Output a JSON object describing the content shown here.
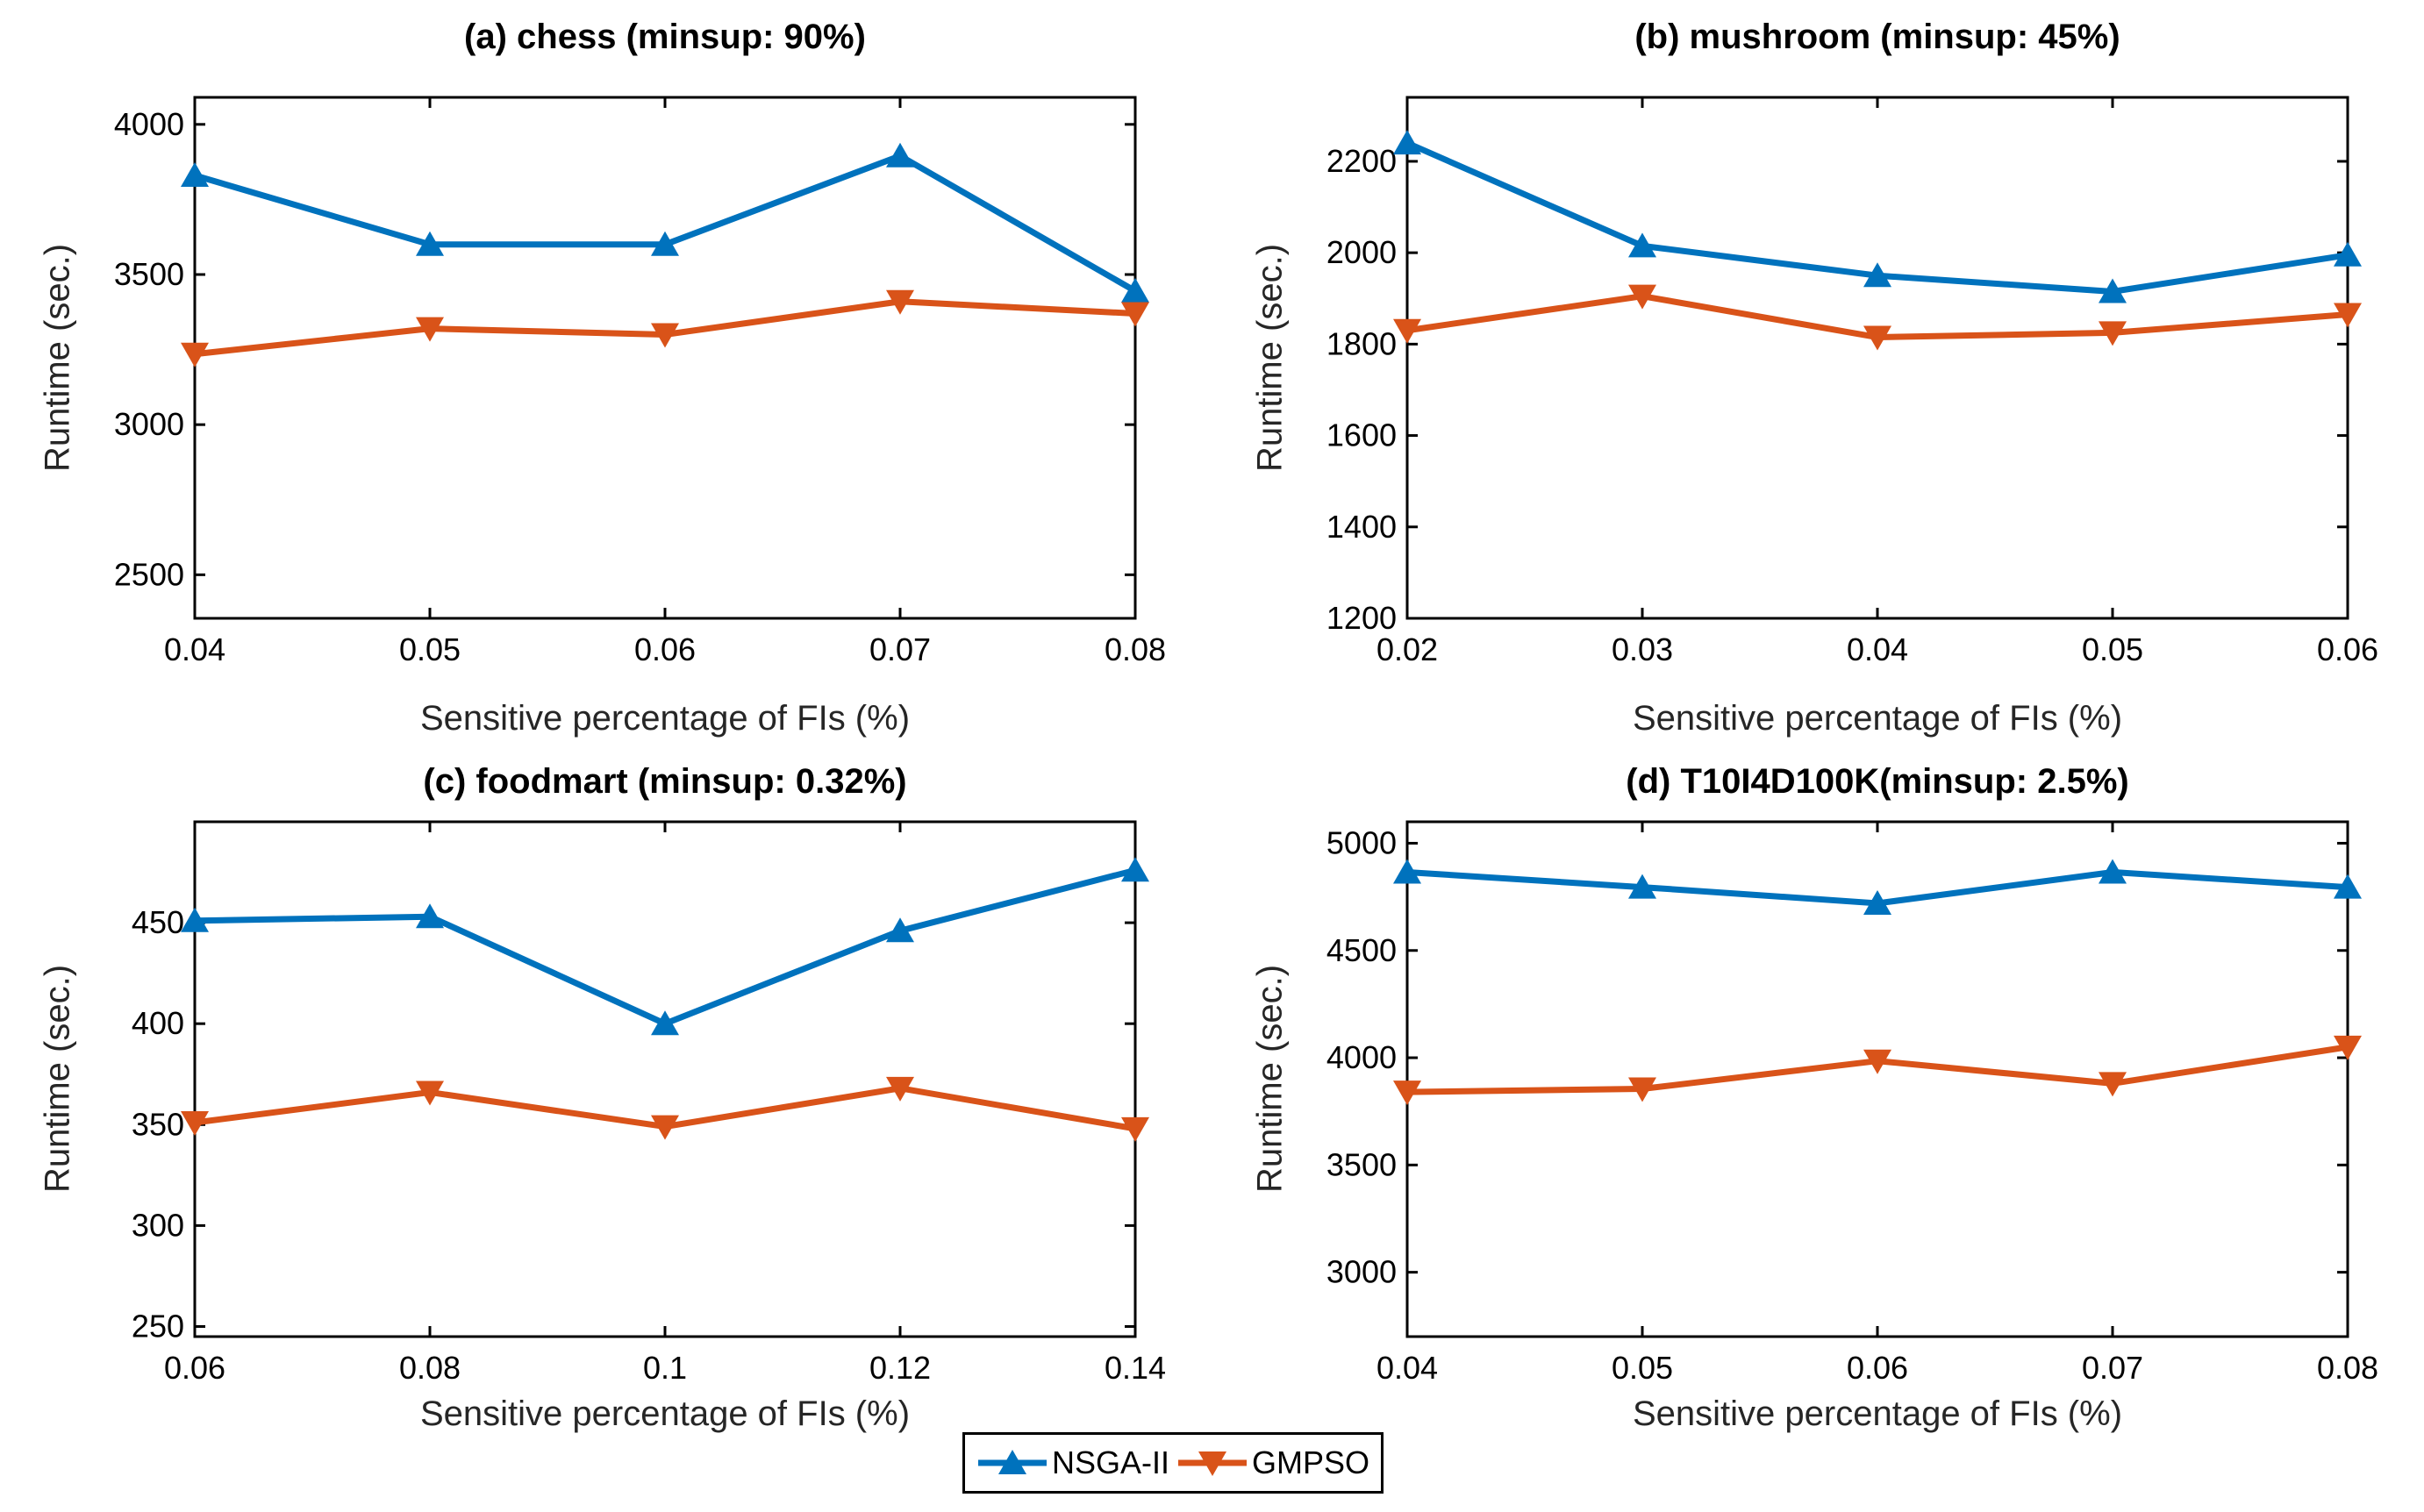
{
  "figure": {
    "background": "#ffffff",
    "axis_color": "#000000",
    "label_color": "#262626"
  },
  "legend": {
    "items": [
      {
        "label": "NSGA-II",
        "color": "#0072BD",
        "marker": "triangle-up"
      },
      {
        "label": "GMPSO",
        "color": "#D95319",
        "marker": "triangle-down"
      }
    ]
  },
  "chart_data": [
    {
      "id": "a",
      "type": "line",
      "title": "(a) chess (minsup: 90%)",
      "xlabel": "Sensitive percentage of FIs (%)",
      "ylabel": "Runtime (sec.)",
      "x": [
        0.04,
        0.05,
        0.06,
        0.07,
        0.08
      ],
      "x_tick_labels": [
        "0.04",
        "0.05",
        "0.06",
        "0.07",
        "0.08"
      ],
      "ylim": [
        2355,
        4090
      ],
      "yticks": [
        2500,
        3000,
        3500,
        4000
      ],
      "grid": false,
      "series": [
        {
          "name": "NSGA-II",
          "color": "#0072BD",
          "marker": "triangle-up",
          "values": [
            3830,
            3600,
            3600,
            3895,
            3445
          ]
        },
        {
          "name": "GMPSO",
          "color": "#D95319",
          "marker": "triangle-down",
          "values": [
            3235,
            3320,
            3300,
            3410,
            3370
          ]
        }
      ]
    },
    {
      "id": "b",
      "type": "line",
      "title": "(b) mushroom (minsup: 45%)",
      "xlabel": "Sensitive percentage of FIs (%)",
      "ylabel": "Runtime (sec.)",
      "x": [
        0.02,
        0.03,
        0.04,
        0.05,
        0.06
      ],
      "x_tick_labels": [
        "0.02",
        "0.03",
        "0.04",
        "0.05",
        "0.06"
      ],
      "ylim": [
        1200,
        2340
      ],
      "yticks": [
        1200,
        1400,
        1600,
        1800,
        2000,
        2200
      ],
      "grid": false,
      "series": [
        {
          "name": "NSGA-II",
          "color": "#0072BD",
          "marker": "triangle-up",
          "values": [
            2240,
            2015,
            1950,
            1915,
            1995
          ]
        },
        {
          "name": "GMPSO",
          "color": "#D95319",
          "marker": "triangle-down",
          "values": [
            1830,
            1905,
            1815,
            1825,
            1865
          ]
        }
      ]
    },
    {
      "id": "c",
      "type": "line",
      "title": "(c) foodmart (minsup: 0.32%)",
      "xlabel": "Sensitive percentage of FIs (%)",
      "ylabel": "Runtime (sec.)",
      "x": [
        0.06,
        0.08,
        0.1,
        0.12,
        0.14
      ],
      "x_tick_labels": [
        "0.06",
        "0.08",
        "0.1",
        "0.12",
        "0.14"
      ],
      "ylim": [
        245,
        500
      ],
      "yticks": [
        250,
        300,
        350,
        400,
        450
      ],
      "grid": false,
      "series": [
        {
          "name": "NSGA-II",
          "color": "#0072BD",
          "marker": "triangle-up",
          "values": [
            451,
            453,
            400,
            446,
            476
          ]
        },
        {
          "name": "GMPSO",
          "color": "#D95319",
          "marker": "triangle-down",
          "values": [
            351,
            366,
            349,
            368,
            348
          ]
        }
      ]
    },
    {
      "id": "d",
      "type": "line",
      "title": "(d) T10I4D100K(minsup: 2.5%)",
      "xlabel": "Sensitive percentage of FIs (%)",
      "ylabel": "Runtime (sec.)",
      "x": [
        0.04,
        0.05,
        0.06,
        0.07,
        0.08
      ],
      "x_tick_labels": [
        "0.04",
        "0.05",
        "0.06",
        "0.07",
        "0.08"
      ],
      "ylim": [
        2700,
        5100
      ],
      "yticks": [
        3000,
        3500,
        4000,
        4500,
        5000
      ],
      "grid": false,
      "series": [
        {
          "name": "NSGA-II",
          "color": "#0072BD",
          "marker": "triangle-up",
          "values": [
            4865,
            4795,
            4720,
            4865,
            4795
          ]
        },
        {
          "name": "GMPSO",
          "color": "#D95319",
          "marker": "triangle-down",
          "values": [
            3840,
            3855,
            3985,
            3880,
            4050
          ]
        }
      ]
    }
  ]
}
